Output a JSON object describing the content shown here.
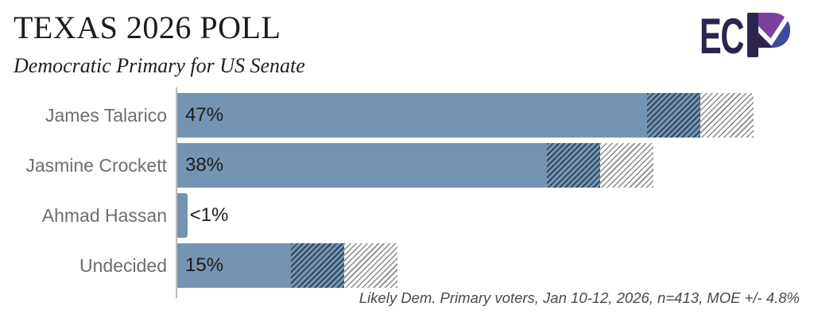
{
  "header": {
    "title": "TEXAS 2026 POLL",
    "subtitle": "Democratic Primary for US Senate"
  },
  "logo": {
    "text": "EC",
    "name": "ECP",
    "navy": "#2d244d",
    "purple": "#7b3f9f",
    "blue": "#3d4a9d"
  },
  "footnote": "Likely Dem. Primary voters, Jan 10-12, 2026, n=413, MOE +/- 4.8%",
  "chart_data": {
    "type": "bar",
    "orientation": "horizontal",
    "title": "TEXAS 2026 POLL",
    "subtitle": "Democratic Primary for US Senate",
    "categories": [
      "James Talarico",
      "Jasmine Crockett",
      "Ahmad Hassan",
      "Undecided"
    ],
    "values": [
      47,
      38,
      0.9,
      15
    ],
    "value_labels": [
      "47%",
      "38%",
      "<1%",
      "15%"
    ],
    "units": "percent",
    "moe_pct": 4.8,
    "moe_shown": [
      true,
      true,
      false,
      true
    ],
    "xlim": [
      0,
      56
    ],
    "grid": false,
    "legend": false,
    "bar_color": "#7494b3",
    "moe_inner_style": "dark diagonal hatch over bar color (value-MOE to value)",
    "moe_outer_style": "gray diagonal hatch over white (value to value+MOE)",
    "note": "Likely Dem. Primary voters, Jan 10-12, 2026, n=413, MOE +/- 4.8%"
  }
}
